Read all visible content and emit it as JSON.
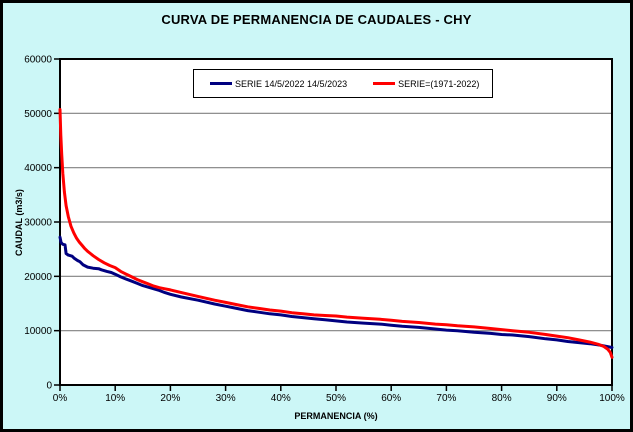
{
  "chart_data": {
    "type": "line",
    "title": "CURVA DE PERMANENCIA DE CAUDALES - CHY",
    "xlabel": "PERMANENCIA (%)",
    "ylabel": "CAUDAL (m3/s)",
    "xlim": [
      0,
      100
    ],
    "ylim": [
      0,
      60000
    ],
    "x_ticks": [
      "0%",
      "10%",
      "20%",
      "30%",
      "40%",
      "50%",
      "60%",
      "70%",
      "80%",
      "90%",
      "100%"
    ],
    "y_ticks": [
      "0",
      "10000",
      "20000",
      "30000",
      "40000",
      "50000",
      "60000"
    ],
    "grid": "horizontal",
    "legend_position": "top-center-inside",
    "colors": {
      "background": "#CCF7F7",
      "plot_background": "#FFFFFF",
      "gridline": "#808080",
      "axis": "#000000",
      "series_blue": "#000080",
      "series_red": "#FF0000"
    },
    "series": [
      {
        "name": "SERIE 14/5/2022 14/5/2023",
        "color": "#000080",
        "points": [
          [
            0,
            27200
          ],
          [
            0.2,
            26200
          ],
          [
            0.5,
            25900
          ],
          [
            0.9,
            25800
          ],
          [
            1.1,
            24200
          ],
          [
            1.5,
            23900
          ],
          [
            2.2,
            23700
          ],
          [
            2.6,
            23300
          ],
          [
            3.2,
            22900
          ],
          [
            3.6,
            22700
          ],
          [
            4.2,
            22100
          ],
          [
            5,
            21700
          ],
          [
            6,
            21500
          ],
          [
            7,
            21400
          ],
          [
            7.5,
            21200
          ],
          [
            8.5,
            20900
          ],
          [
            9.3,
            20700
          ],
          [
            10,
            20400
          ],
          [
            11,
            19900
          ],
          [
            12,
            19500
          ],
          [
            13,
            19100
          ],
          [
            14,
            18700
          ],
          [
            15,
            18300
          ],
          [
            16,
            18000
          ],
          [
            17,
            17700
          ],
          [
            18,
            17400
          ],
          [
            19,
            17000
          ],
          [
            20,
            16700
          ],
          [
            22,
            16200
          ],
          [
            25,
            15600
          ],
          [
            28,
            14900
          ],
          [
            30,
            14500
          ],
          [
            32,
            14100
          ],
          [
            34,
            13700
          ],
          [
            36,
            13400
          ],
          [
            38,
            13100
          ],
          [
            40,
            12900
          ],
          [
            42,
            12600
          ],
          [
            44,
            12400
          ],
          [
            46,
            12200
          ],
          [
            48,
            12000
          ],
          [
            50,
            11800
          ],
          [
            52,
            11600
          ],
          [
            55,
            11400
          ],
          [
            58,
            11200
          ],
          [
            60,
            11000
          ],
          [
            62,
            10800
          ],
          [
            65,
            10600
          ],
          [
            68,
            10300
          ],
          [
            70,
            10100
          ],
          [
            72,
            10000
          ],
          [
            75,
            9700
          ],
          [
            78,
            9500
          ],
          [
            80,
            9300
          ],
          [
            82,
            9200
          ],
          [
            85,
            8900
          ],
          [
            88,
            8500
          ],
          [
            90,
            8300
          ],
          [
            92,
            8000
          ],
          [
            94,
            7800
          ],
          [
            96,
            7600
          ],
          [
            98,
            7300
          ],
          [
            100,
            6900
          ]
        ]
      },
      {
        "name": "SERIE=(1971-2022)",
        "color": "#FF0000",
        "points": [
          [
            0,
            50700
          ],
          [
            0.15,
            46000
          ],
          [
            0.3,
            42500
          ],
          [
            0.5,
            39000
          ],
          [
            0.8,
            35500
          ],
          [
            1.1,
            33000
          ],
          [
            1.5,
            31000
          ],
          [
            2,
            29200
          ],
          [
            2.5,
            28000
          ],
          [
            3,
            27000
          ],
          [
            3.5,
            26300
          ],
          [
            4,
            25700
          ],
          [
            4.5,
            25100
          ],
          [
            5,
            24600
          ],
          [
            5.5,
            24200
          ],
          [
            6,
            23800
          ],
          [
            7,
            23100
          ],
          [
            8,
            22500
          ],
          [
            9,
            22000
          ],
          [
            10,
            21600
          ],
          [
            11,
            20900
          ],
          [
            12,
            20400
          ],
          [
            13,
            19900
          ],
          [
            14,
            19400
          ],
          [
            15,
            19000
          ],
          [
            16,
            18600
          ],
          [
            17,
            18200
          ],
          [
            18,
            17900
          ],
          [
            19,
            17700
          ],
          [
            20,
            17500
          ],
          [
            22,
            17000
          ],
          [
            25,
            16300
          ],
          [
            28,
            15600
          ],
          [
            30,
            15200
          ],
          [
            32,
            14800
          ],
          [
            34,
            14400
          ],
          [
            36,
            14100
          ],
          [
            38,
            13800
          ],
          [
            40,
            13600
          ],
          [
            42,
            13300
          ],
          [
            44,
            13100
          ],
          [
            46,
            12900
          ],
          [
            48,
            12800
          ],
          [
            50,
            12700
          ],
          [
            52,
            12500
          ],
          [
            55,
            12300
          ],
          [
            58,
            12100
          ],
          [
            60,
            11900
          ],
          [
            62,
            11700
          ],
          [
            65,
            11500
          ],
          [
            68,
            11200
          ],
          [
            70,
            11100
          ],
          [
            72,
            10900
          ],
          [
            75,
            10700
          ],
          [
            78,
            10400
          ],
          [
            80,
            10200
          ],
          [
            82,
            10000
          ],
          [
            85,
            9700
          ],
          [
            88,
            9300
          ],
          [
            90,
            9000
          ],
          [
            92,
            8700
          ],
          [
            94,
            8300
          ],
          [
            96,
            7900
          ],
          [
            97.5,
            7500
          ],
          [
            98.5,
            7100
          ],
          [
            99.2,
            6600
          ],
          [
            99.7,
            6000
          ],
          [
            100,
            5100
          ]
        ]
      }
    ]
  }
}
